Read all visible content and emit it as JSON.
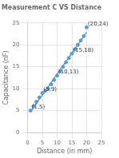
{
  "chart_data": {
    "type": "scatter",
    "title": "Measurement C VS Distance",
    "x_label": "Distance (in mm)",
    "y_label": "Capacitance (nF)",
    "series": [
      {
        "type": "scatter",
        "color": "#5b9bd5",
        "marker": "circle",
        "x": [
          1,
          2,
          3,
          4,
          5,
          6,
          7,
          8,
          9,
          10,
          11,
          12,
          13,
          14,
          15,
          16,
          17,
          18,
          19,
          20
        ],
        "values": [
          5,
          6,
          7,
          8,
          9,
          9.5,
          10,
          11,
          12,
          13,
          14,
          15,
          16,
          17,
          18,
          19,
          20,
          21,
          22,
          24
        ]
      },
      {
        "type": "line",
        "color": "#5b9bd5",
        "line_style": "solid",
        "x": [
          1,
          20
        ],
        "values": [
          4.7571,
          22.8929
        ]
      }
    ],
    "annotations": [
      {
        "x": 1,
        "y": 5,
        "text": "(1,5)"
      },
      {
        "x": 5,
        "y": 9,
        "text": "(5,9)"
      },
      {
        "x": 10,
        "y": 13,
        "text": "(10,13)"
      },
      {
        "x": 15,
        "y": 18,
        "text": "(15,18)"
      },
      {
        "x": 20,
        "y": 24,
        "text": "(20,24)"
      }
    ],
    "xlim": [
      0,
      25
    ],
    "xticks": [
      0,
      5,
      10,
      15,
      20,
      25
    ],
    "ylim": [
      0,
      25
    ],
    "yticks": [
      0,
      5,
      10,
      15,
      20,
      25
    ],
    "grid": true
  }
}
